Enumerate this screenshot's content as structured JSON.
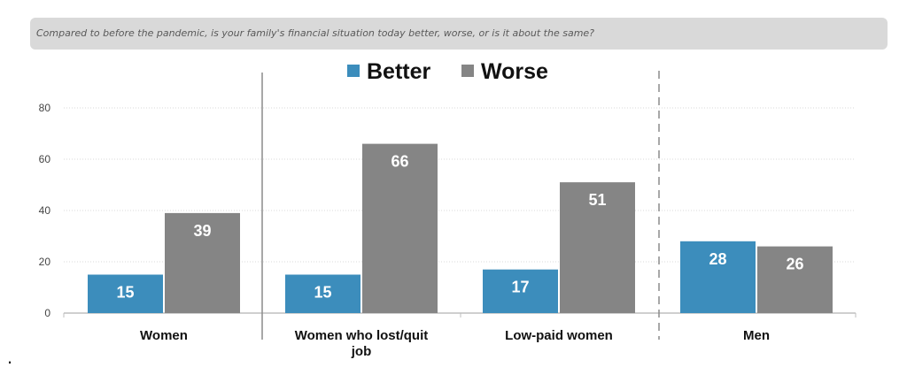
{
  "question": "Compared to before the pandemic, is your family's financial situation today better, worse, or is it about the same?",
  "stray_mark": ".",
  "colors": {
    "better": "#3c8dbc",
    "worse": "#858585",
    "grid": "#d9d9d9",
    "axis": "#bfbfbf",
    "separator": "#8c8c8c"
  },
  "chart_data": {
    "type": "bar",
    "title": "",
    "xlabel": "",
    "ylabel": "",
    "categories": [
      "Women",
      "Women who lost/quit job",
      "Low-paid women",
      "Men"
    ],
    "category_lines": [
      [
        "Women"
      ],
      [
        "Women who lost/quit",
        "job"
      ],
      [
        "Low-paid women"
      ],
      [
        "Men"
      ]
    ],
    "series": [
      {
        "name": "Better",
        "values": [
          15,
          15,
          17,
          28
        ]
      },
      {
        "name": "Worse",
        "values": [
          39,
          66,
          51,
          26
        ]
      }
    ],
    "yticks": [
      "0",
      "20",
      "40",
      "60",
      "80"
    ],
    "ylim": [
      0,
      80
    ],
    "grid": true,
    "legend": "top-center",
    "data_labels": true
  }
}
